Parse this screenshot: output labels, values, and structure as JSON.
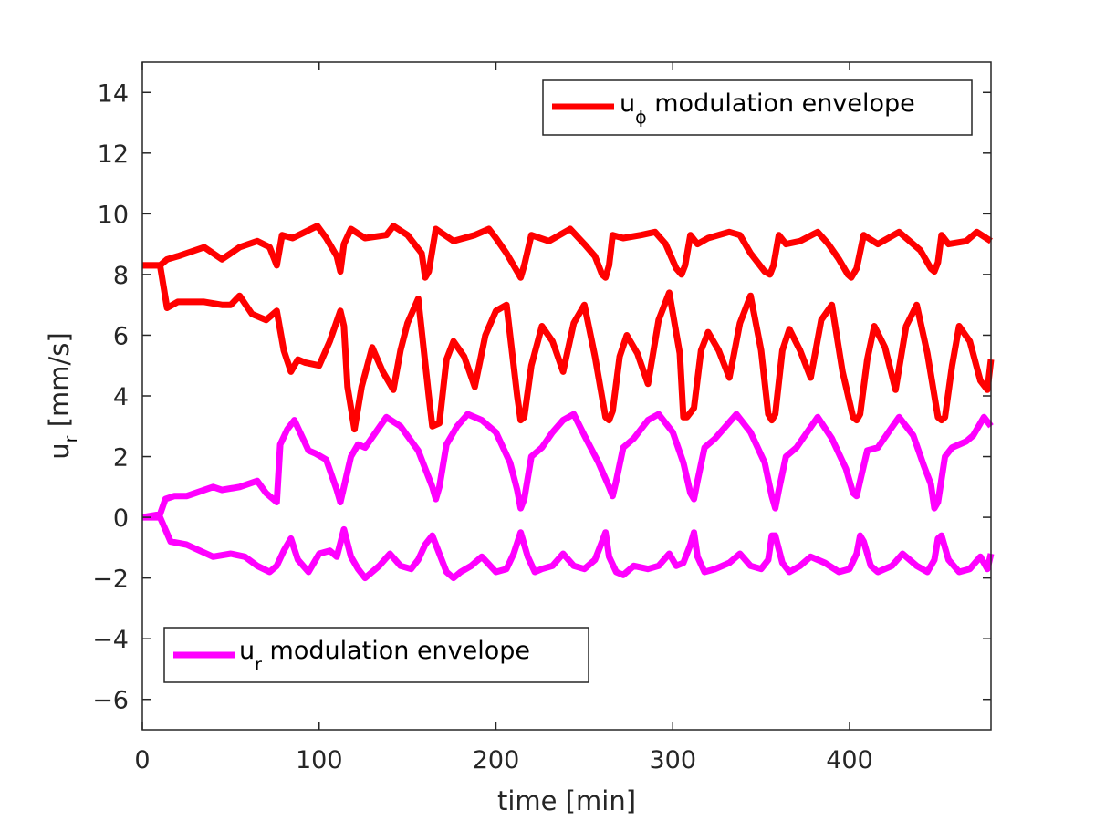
{
  "chart_data": {
    "type": "line",
    "title": "",
    "xlabel": "time [min]",
    "ylabel": {
      "base": "u",
      "sub": "r",
      "rest": " [mm/s]"
    },
    "xlim": [
      0,
      480
    ],
    "ylim": [
      -7,
      15
    ],
    "xticks": [
      0,
      100,
      200,
      300,
      400
    ],
    "yticks": [
      -6,
      -4,
      -2,
      0,
      2,
      4,
      6,
      8,
      10,
      12,
      14
    ],
    "xtick_labels": [
      "0",
      "100",
      "200",
      "300",
      "400"
    ],
    "ytick_labels": [
      "−6",
      "−4",
      "−2",
      "0",
      "2",
      "4",
      "6",
      "8",
      "10",
      "12",
      "14"
    ],
    "grid": false,
    "colors": {
      "u_phi": "#ff0000",
      "u_r": "#ff00ff",
      "axis": "#262626"
    },
    "legends": [
      {
        "location": "top-right",
        "base": "u",
        "sub": "ϕ",
        "rest": " modulation envelope",
        "series": "u_phi"
      },
      {
        "location": "bottom-left",
        "base": "u",
        "sub": "r",
        "rest": " modulation envelope",
        "series": "u_r"
      }
    ],
    "series": [
      {
        "name": "u_phi upper envelope",
        "group": "u_phi",
        "x": [
          0,
          10,
          14,
          20,
          35,
          45,
          55,
          65,
          72,
          76,
          79,
          85,
          92,
          99,
          104,
          110,
          112,
          114,
          118,
          126,
          138,
          142,
          150,
          158,
          160,
          162,
          166,
          176,
          188,
          196,
          200,
          206,
          212,
          214,
          216,
          220,
          230,
          242,
          250,
          256,
          260,
          262,
          264,
          266,
          272,
          282,
          290,
          296,
          302,
          305,
          307,
          310,
          314,
          320,
          332,
          338,
          344,
          352,
          355,
          357,
          360,
          364,
          372,
          382,
          388,
          394,
          399,
          401,
          404,
          408,
          416,
          428,
          434,
          440,
          446,
          448,
          450,
          452,
          456,
          466,
          472,
          480
        ],
        "y": [
          8.3,
          8.3,
          8.5,
          8.6,
          8.9,
          8.5,
          8.9,
          9.1,
          8.9,
          8.3,
          9.3,
          9.2,
          9.4,
          9.6,
          9.2,
          8.6,
          8.1,
          9.0,
          9.5,
          9.2,
          9.3,
          9.6,
          9.3,
          8.7,
          7.9,
          8.1,
          9.5,
          9.1,
          9.3,
          9.5,
          9.2,
          8.7,
          8.1,
          7.9,
          8.3,
          9.3,
          9.1,
          9.5,
          9.0,
          8.6,
          8.0,
          7.9,
          8.3,
          9.3,
          9.2,
          9.3,
          9.4,
          9.0,
          8.2,
          8.0,
          8.3,
          9.3,
          9.0,
          9.2,
          9.4,
          9.3,
          8.7,
          8.1,
          8.0,
          8.3,
          9.3,
          9.0,
          9.1,
          9.4,
          9.0,
          8.5,
          8.0,
          7.9,
          8.2,
          9.3,
          9.0,
          9.4,
          9.1,
          8.8,
          8.2,
          8.1,
          8.4,
          9.3,
          9.0,
          9.1,
          9.4,
          9.1
        ]
      },
      {
        "name": "u_phi lower envelope",
        "group": "u_phi",
        "x": [
          0,
          10,
          14,
          20,
          35,
          45,
          50,
          55,
          62,
          70,
          76,
          80,
          84,
          88,
          92,
          100,
          106,
          112,
          114,
          116,
          120,
          124,
          130,
          136,
          142,
          146,
          150,
          156,
          162,
          164,
          168,
          172,
          176,
          182,
          188,
          194,
          200,
          206,
          212,
          214,
          216,
          220,
          226,
          232,
          238,
          244,
          250,
          256,
          262,
          264,
          266,
          270,
          274,
          280,
          286,
          292,
          298,
          304,
          306,
          308,
          312,
          316,
          320,
          326,
          332,
          338,
          344,
          350,
          354,
          356,
          358,
          362,
          366,
          372,
          378,
          384,
          390,
          396,
          402,
          404,
          406,
          410,
          414,
          420,
          426,
          432,
          438,
          444,
          450,
          452,
          454,
          458,
          462,
          468,
          474,
          478,
          480
        ],
        "y": [
          8.3,
          8.3,
          6.9,
          7.1,
          7.1,
          7.0,
          7.0,
          7.3,
          6.7,
          6.5,
          6.8,
          5.5,
          4.8,
          5.2,
          5.1,
          5.0,
          5.8,
          6.8,
          6.3,
          4.3,
          2.9,
          4.3,
          5.6,
          4.8,
          4.2,
          5.5,
          6.4,
          7.2,
          4.0,
          3.0,
          3.1,
          5.2,
          5.8,
          5.3,
          4.3,
          6.0,
          6.8,
          7.0,
          4.0,
          3.2,
          3.3,
          5.0,
          6.3,
          5.8,
          4.8,
          6.4,
          7.0,
          5.3,
          3.3,
          3.2,
          3.5,
          5.3,
          6.0,
          5.4,
          4.4,
          6.5,
          7.4,
          5.4,
          3.3,
          3.3,
          3.6,
          5.5,
          6.1,
          5.5,
          4.6,
          6.4,
          7.3,
          5.5,
          3.4,
          3.2,
          3.4,
          5.5,
          6.2,
          5.5,
          4.6,
          6.5,
          7.0,
          4.8,
          3.3,
          3.2,
          3.4,
          5.2,
          6.3,
          5.6,
          4.2,
          6.3,
          7.0,
          5.4,
          3.3,
          3.2,
          3.3,
          5.0,
          6.3,
          5.8,
          4.5,
          4.2,
          5.2
        ]
      },
      {
        "name": "u_r upper envelope",
        "group": "u_r",
        "x": [
          0,
          10,
          13,
          18,
          25,
          30,
          40,
          45,
          55,
          65,
          70,
          76,
          78,
          82,
          86,
          90,
          94,
          98,
          104,
          110,
          112,
          114,
          118,
          122,
          126,
          132,
          138,
          146,
          156,
          164,
          166,
          168,
          172,
          178,
          184,
          192,
          200,
          208,
          212,
          214,
          216,
          220,
          226,
          232,
          238,
          244,
          250,
          258,
          264,
          266,
          268,
          272,
          278,
          286,
          292,
          300,
          306,
          310,
          312,
          314,
          318,
          324,
          330,
          336,
          344,
          352,
          356,
          358,
          360,
          364,
          370,
          376,
          382,
          390,
          398,
          402,
          404,
          406,
          410,
          416,
          422,
          428,
          436,
          442,
          446,
          448,
          450,
          454,
          458,
          466,
          470,
          476,
          480
        ],
        "y": [
          0,
          0.1,
          0.6,
          0.7,
          0.7,
          0.8,
          1.0,
          0.9,
          1.0,
          1.2,
          0.8,
          0.5,
          2.4,
          2.9,
          3.2,
          2.7,
          2.2,
          2.1,
          1.9,
          0.9,
          0.5,
          1.0,
          2.0,
          2.4,
          2.3,
          2.8,
          3.3,
          3.0,
          2.2,
          1.0,
          0.6,
          1.0,
          2.4,
          3.0,
          3.4,
          3.2,
          2.8,
          1.8,
          0.9,
          0.3,
          0.6,
          2.0,
          2.3,
          2.8,
          3.2,
          3.4,
          2.7,
          1.8,
          1.0,
          0.7,
          1.2,
          2.3,
          2.6,
          3.2,
          3.4,
          2.8,
          1.8,
          0.8,
          0.6,
          1.2,
          2.3,
          2.6,
          3.0,
          3.4,
          2.8,
          1.8,
          0.7,
          0.3,
          0.9,
          2.0,
          2.3,
          2.8,
          3.3,
          2.6,
          1.6,
          0.8,
          0.7,
          1.2,
          2.2,
          2.3,
          2.8,
          3.3,
          2.7,
          1.7,
          1.1,
          0.3,
          0.5,
          2.0,
          2.3,
          2.5,
          2.7,
          3.3,
          3.0
        ]
      },
      {
        "name": "u_r lower envelope",
        "group": "u_r",
        "x": [
          0,
          10,
          16,
          25,
          40,
          50,
          58,
          65,
          72,
          76,
          80,
          84,
          88,
          94,
          100,
          106,
          110,
          114,
          118,
          122,
          126,
          134,
          140,
          146,
          152,
          156,
          160,
          164,
          168,
          172,
          176,
          180,
          186,
          192,
          200,
          206,
          210,
          214,
          218,
          222,
          226,
          232,
          238,
          244,
          250,
          256,
          260,
          262,
          264,
          268,
          272,
          278,
          286,
          292,
          298,
          302,
          306,
          310,
          312,
          314,
          318,
          324,
          332,
          338,
          344,
          350,
          354,
          356,
          358,
          362,
          366,
          372,
          378,
          386,
          394,
          400,
          404,
          406,
          408,
          412,
          416,
          424,
          430,
          438,
          444,
          448,
          450,
          452,
          456,
          462,
          468,
          474,
          478,
          480
        ],
        "y": [
          0,
          0,
          -0.8,
          -0.9,
          -1.3,
          -1.2,
          -1.3,
          -1.6,
          -1.8,
          -1.6,
          -1.1,
          -0.7,
          -1.4,
          -1.8,
          -1.2,
          -1.1,
          -1.3,
          -0.4,
          -1.3,
          -1.7,
          -2.0,
          -1.6,
          -1.2,
          -1.6,
          -1.7,
          -1.4,
          -0.9,
          -0.6,
          -1.2,
          -1.8,
          -2.0,
          -1.8,
          -1.6,
          -1.3,
          -1.8,
          -1.7,
          -1.2,
          -0.5,
          -1.3,
          -1.8,
          -1.7,
          -1.6,
          -1.2,
          -1.6,
          -1.7,
          -1.4,
          -0.8,
          -0.5,
          -1.3,
          -1.8,
          -1.9,
          -1.6,
          -1.7,
          -1.6,
          -1.2,
          -1.6,
          -1.5,
          -0.9,
          -0.5,
          -1.3,
          -1.8,
          -1.7,
          -1.5,
          -1.2,
          -1.6,
          -1.7,
          -1.4,
          -0.6,
          -0.6,
          -1.5,
          -1.8,
          -1.6,
          -1.3,
          -1.5,
          -1.8,
          -1.7,
          -1.2,
          -0.6,
          -0.8,
          -1.6,
          -1.8,
          -1.6,
          -1.2,
          -1.6,
          -1.8,
          -1.4,
          -0.7,
          -0.6,
          -1.4,
          -1.8,
          -1.7,
          -1.3,
          -1.7,
          -1.2
        ]
      }
    ]
  }
}
